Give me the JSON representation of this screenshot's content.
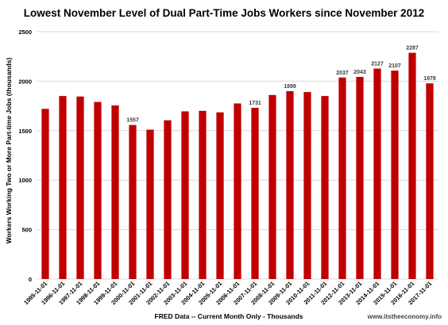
{
  "chart_data": {
    "type": "bar",
    "title": "Lowest November Level of Dual Part-Time Jobs Workers since November 2012",
    "xlabel": "FRED Data -- Current Month Only - Thousands",
    "ylabel": "Workers Working Two or More Part-time Jobs (thousands)",
    "ylim": [
      0,
      2500
    ],
    "yticks": [
      0,
      500,
      1000,
      1500,
      2000,
      2500
    ],
    "grid": true,
    "bar_color": "#c00000",
    "categories": [
      "1995-11-01",
      "1996-11-01",
      "1997-11-01",
      "1998-11-01",
      "1999-11-01",
      "2000-11-01",
      "2001-11-01",
      "2002-11-01",
      "2003-11-01",
      "2004-11-01",
      "2005-11-01",
      "2006-11-01",
      "2007-11-01",
      "2008-11-01",
      "2009-11-01",
      "2010-11-01",
      "2011-11-01",
      "2012-11-01",
      "2013-11-01",
      "2014-11-01",
      "2015-11-01",
      "2016-11-01",
      "2017-11-01"
    ],
    "values": [
      1720,
      1850,
      1845,
      1790,
      1755,
      1557,
      1510,
      1605,
      1695,
      1700,
      1685,
      1775,
      1731,
      1860,
      1899,
      1890,
      1850,
      2037,
      2043,
      2127,
      2107,
      2287,
      1978
    ],
    "labels": [
      "",
      "",
      "",
      "",
      "",
      "1557",
      "",
      "",
      "",
      "",
      "",
      "",
      "1731",
      "",
      "1899",
      "",
      "",
      "2037",
      "2043",
      "2127",
      "2107",
      "2287",
      "1978"
    ]
  },
  "watermark": "www.itstheeconomy.info"
}
